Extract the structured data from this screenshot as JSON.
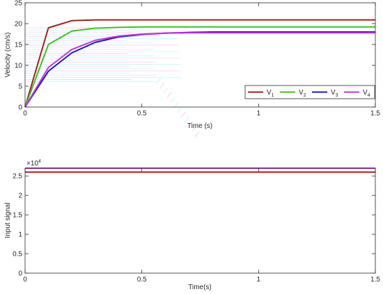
{
  "chart_data": [
    {
      "type": "line",
      "xlabel": "Time (s)",
      "ylabel": "Velocity (cm/s)",
      "xlim": [
        0,
        1.5
      ],
      "ylim": [
        0,
        25
      ],
      "xticks": [
        0,
        0.5,
        1,
        1.5
      ],
      "xtick_labels": [
        "0",
        "0.5",
        "1",
        "1.5"
      ],
      "yticks": [
        0,
        5,
        10,
        15,
        20,
        25
      ],
      "ytick_labels": [
        "0",
        "5",
        "10",
        "15",
        "20",
        "25"
      ],
      "grid": false,
      "legend_position": "bottom-right",
      "legend_orientation": "horizontal",
      "series": [
        {
          "name": "V",
          "subscript": "1",
          "color": "#a0201c",
          "x": [
            0,
            0.1,
            0.2,
            0.3,
            0.4,
            0.5,
            0.6,
            0.7,
            0.8,
            1.0,
            1.2,
            1.5
          ],
          "y": [
            0,
            19.0,
            20.7,
            20.9,
            20.9,
            20.9,
            20.9,
            20.9,
            20.9,
            20.9,
            20.9,
            20.9
          ]
        },
        {
          "name": "V",
          "subscript": "2",
          "color": "#3cc41e",
          "x": [
            0,
            0.1,
            0.2,
            0.3,
            0.4,
            0.5,
            0.6,
            0.7,
            0.8,
            1.0,
            1.2,
            1.5
          ],
          "y": [
            0,
            15.0,
            18.2,
            18.9,
            19.1,
            19.2,
            19.2,
            19.2,
            19.2,
            19.2,
            19.2,
            19.2
          ]
        },
        {
          "name": "V",
          "subscript": "3",
          "color": "#1a1ab8",
          "x": [
            0,
            0.1,
            0.2,
            0.3,
            0.4,
            0.5,
            0.6,
            0.7,
            0.8,
            1.0,
            1.2,
            1.5
          ],
          "y": [
            0,
            8.6,
            13.0,
            15.5,
            16.8,
            17.4,
            17.7,
            17.9,
            18.0,
            18.0,
            18.0,
            18.0
          ]
        },
        {
          "name": "V",
          "subscript": "4",
          "color": "#c535d8",
          "x": [
            0,
            0.1,
            0.2,
            0.3,
            0.4,
            0.5,
            0.6,
            0.7,
            0.8,
            1.0,
            1.2,
            1.5
          ],
          "y": [
            0,
            9.5,
            13.8,
            16.0,
            17.0,
            17.5,
            17.7,
            17.8,
            17.8,
            17.8,
            17.8,
            17.8
          ]
        }
      ]
    },
    {
      "type": "line",
      "xlabel": "Time(s)",
      "ylabel": "Input signal",
      "exponent_label": "×10",
      "exponent_power": "4",
      "xlim": [
        0,
        1.5
      ],
      "ylim": [
        0,
        2.7
      ],
      "xticks": [
        0,
        0.5,
        1,
        1.5
      ],
      "xtick_labels": [
        "0",
        "0.5",
        "1",
        "1.5"
      ],
      "yticks": [
        0,
        0.5,
        1,
        1.5,
        2,
        2.5
      ],
      "ytick_labels": [
        "0",
        "0.5",
        "1",
        "1.5",
        "2",
        "2.5"
      ],
      "grid": false,
      "series": [
        {
          "color": "#c535d8",
          "x": [
            0,
            1.5
          ],
          "y": [
            2.7,
            2.7
          ]
        },
        {
          "color": "#a0201c",
          "x": [
            0,
            1.5
          ],
          "y": [
            2.6,
            2.6
          ]
        }
      ]
    }
  ]
}
